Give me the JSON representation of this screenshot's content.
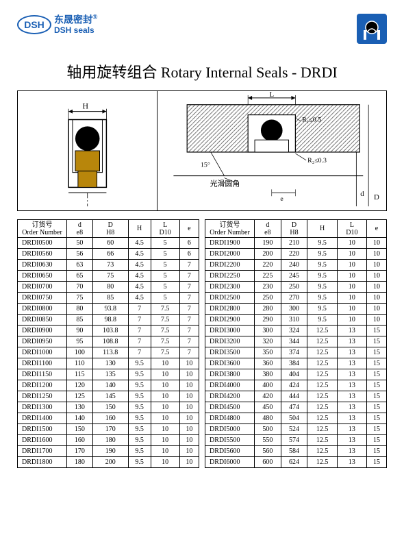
{
  "brand": {
    "logo_label": "DSH",
    "name_cn": "东晟密封",
    "name_en": "DSH seals",
    "reg": "®"
  },
  "title": "轴用旋转组合 Rotary Internal Seals - DRDI",
  "colors": {
    "brand_blue": "#1a5fb4",
    "diagram_hatch": "#555555",
    "diagram_brown": "#b8860b",
    "border": "#000000"
  },
  "diagram": {
    "label_H": "H",
    "label_L": "L",
    "label_D": "D",
    "label_d": "d",
    "label_e": "e",
    "label_R1": "R₁≤0.5",
    "label_R2": "R₂≤0.3",
    "label_angle": "15°",
    "label_smooth": "光滑圆角"
  },
  "columns": {
    "order_cn": "订货号",
    "order_en": "Order Number",
    "d": "d",
    "d_sub": "e8",
    "D": "D",
    "D_sub": "H8",
    "H": "H",
    "L": "L",
    "L_sub": "D10",
    "e": "e"
  },
  "table_left": [
    [
      "DRDI0500",
      "50",
      "60",
      "4.5",
      "5",
      "6"
    ],
    [
      "DRDI0560",
      "56",
      "66",
      "4.5",
      "5",
      "6"
    ],
    [
      "DRDI0630",
      "63",
      "73",
      "4.5",
      "5",
      "7"
    ],
    [
      "DRDI0650",
      "65",
      "75",
      "4.5",
      "5",
      "7"
    ],
    [
      "DRDI0700",
      "70",
      "80",
      "4.5",
      "5",
      "7"
    ],
    [
      "DRDI0750",
      "75",
      "85",
      "4.5",
      "5",
      "7"
    ],
    [
      "DRDI0800",
      "80",
      "93.8",
      "7",
      "7.5",
      "7"
    ],
    [
      "DRDI0850",
      "85",
      "98.8",
      "7",
      "7.5",
      "7"
    ],
    [
      "DRDI0900",
      "90",
      "103.8",
      "7",
      "7.5",
      "7"
    ],
    [
      "DRDI0950",
      "95",
      "108.8",
      "7",
      "7.5",
      "7"
    ],
    [
      "DRDI1000",
      "100",
      "113.8",
      "7",
      "7.5",
      "7"
    ],
    [
      "DRDI1100",
      "110",
      "130",
      "9.5",
      "10",
      "10"
    ],
    [
      "DRDI1150",
      "115",
      "135",
      "9.5",
      "10",
      "10"
    ],
    [
      "DRDI1200",
      "120",
      "140",
      "9.5",
      "10",
      "10"
    ],
    [
      "DRDI1250",
      "125",
      "145",
      "9.5",
      "10",
      "10"
    ],
    [
      "DRDI1300",
      "130",
      "150",
      "9.5",
      "10",
      "10"
    ],
    [
      "DRDI1400",
      "140",
      "160",
      "9.5",
      "10",
      "10"
    ],
    [
      "DRDI1500",
      "150",
      "170",
      "9.5",
      "10",
      "10"
    ],
    [
      "DRDI1600",
      "160",
      "180",
      "9.5",
      "10",
      "10"
    ],
    [
      "DRDI1700",
      "170",
      "190",
      "9.5",
      "10",
      "10"
    ],
    [
      "DRDI1800",
      "180",
      "200",
      "9.5",
      "10",
      "10"
    ]
  ],
  "table_right": [
    [
      "DRDI1900",
      "190",
      "210",
      "9.5",
      "10",
      "10"
    ],
    [
      "DRDI2000",
      "200",
      "220",
      "9.5",
      "10",
      "10"
    ],
    [
      "DRDI2200",
      "220",
      "240",
      "9.5",
      "10",
      "10"
    ],
    [
      "DRDI2250",
      "225",
      "245",
      "9.5",
      "10",
      "10"
    ],
    [
      "DRDI2300",
      "230",
      "250",
      "9.5",
      "10",
      "10"
    ],
    [
      "DRDI2500",
      "250",
      "270",
      "9.5",
      "10",
      "10"
    ],
    [
      "DRDI2800",
      "280",
      "300",
      "9.5",
      "10",
      "10"
    ],
    [
      "DRDI2900",
      "290",
      "310",
      "9.5",
      "10",
      "10"
    ],
    [
      "DRDI3000",
      "300",
      "324",
      "12.5",
      "13",
      "15"
    ],
    [
      "DRDI3200",
      "320",
      "344",
      "12.5",
      "13",
      "15"
    ],
    [
      "DRDI3500",
      "350",
      "374",
      "12.5",
      "13",
      "15"
    ],
    [
      "DRDI3600",
      "360",
      "384",
      "12.5",
      "13",
      "15"
    ],
    [
      "DRDI3800",
      "380",
      "404",
      "12.5",
      "13",
      "15"
    ],
    [
      "DRDI4000",
      "400",
      "424",
      "12.5",
      "13",
      "15"
    ],
    [
      "DRDI4200",
      "420",
      "444",
      "12.5",
      "13",
      "15"
    ],
    [
      "DRDI4500",
      "450",
      "474",
      "12.5",
      "13",
      "15"
    ],
    [
      "DRDI4800",
      "480",
      "504",
      "12.5",
      "13",
      "15"
    ],
    [
      "DRDI5000",
      "500",
      "524",
      "12.5",
      "13",
      "15"
    ],
    [
      "DRDI5500",
      "550",
      "574",
      "12.5",
      "13",
      "15"
    ],
    [
      "DRDI5600",
      "560",
      "584",
      "12.5",
      "13",
      "15"
    ],
    [
      "DRDI6000",
      "600",
      "624",
      "12.5",
      "13",
      "15"
    ]
  ]
}
